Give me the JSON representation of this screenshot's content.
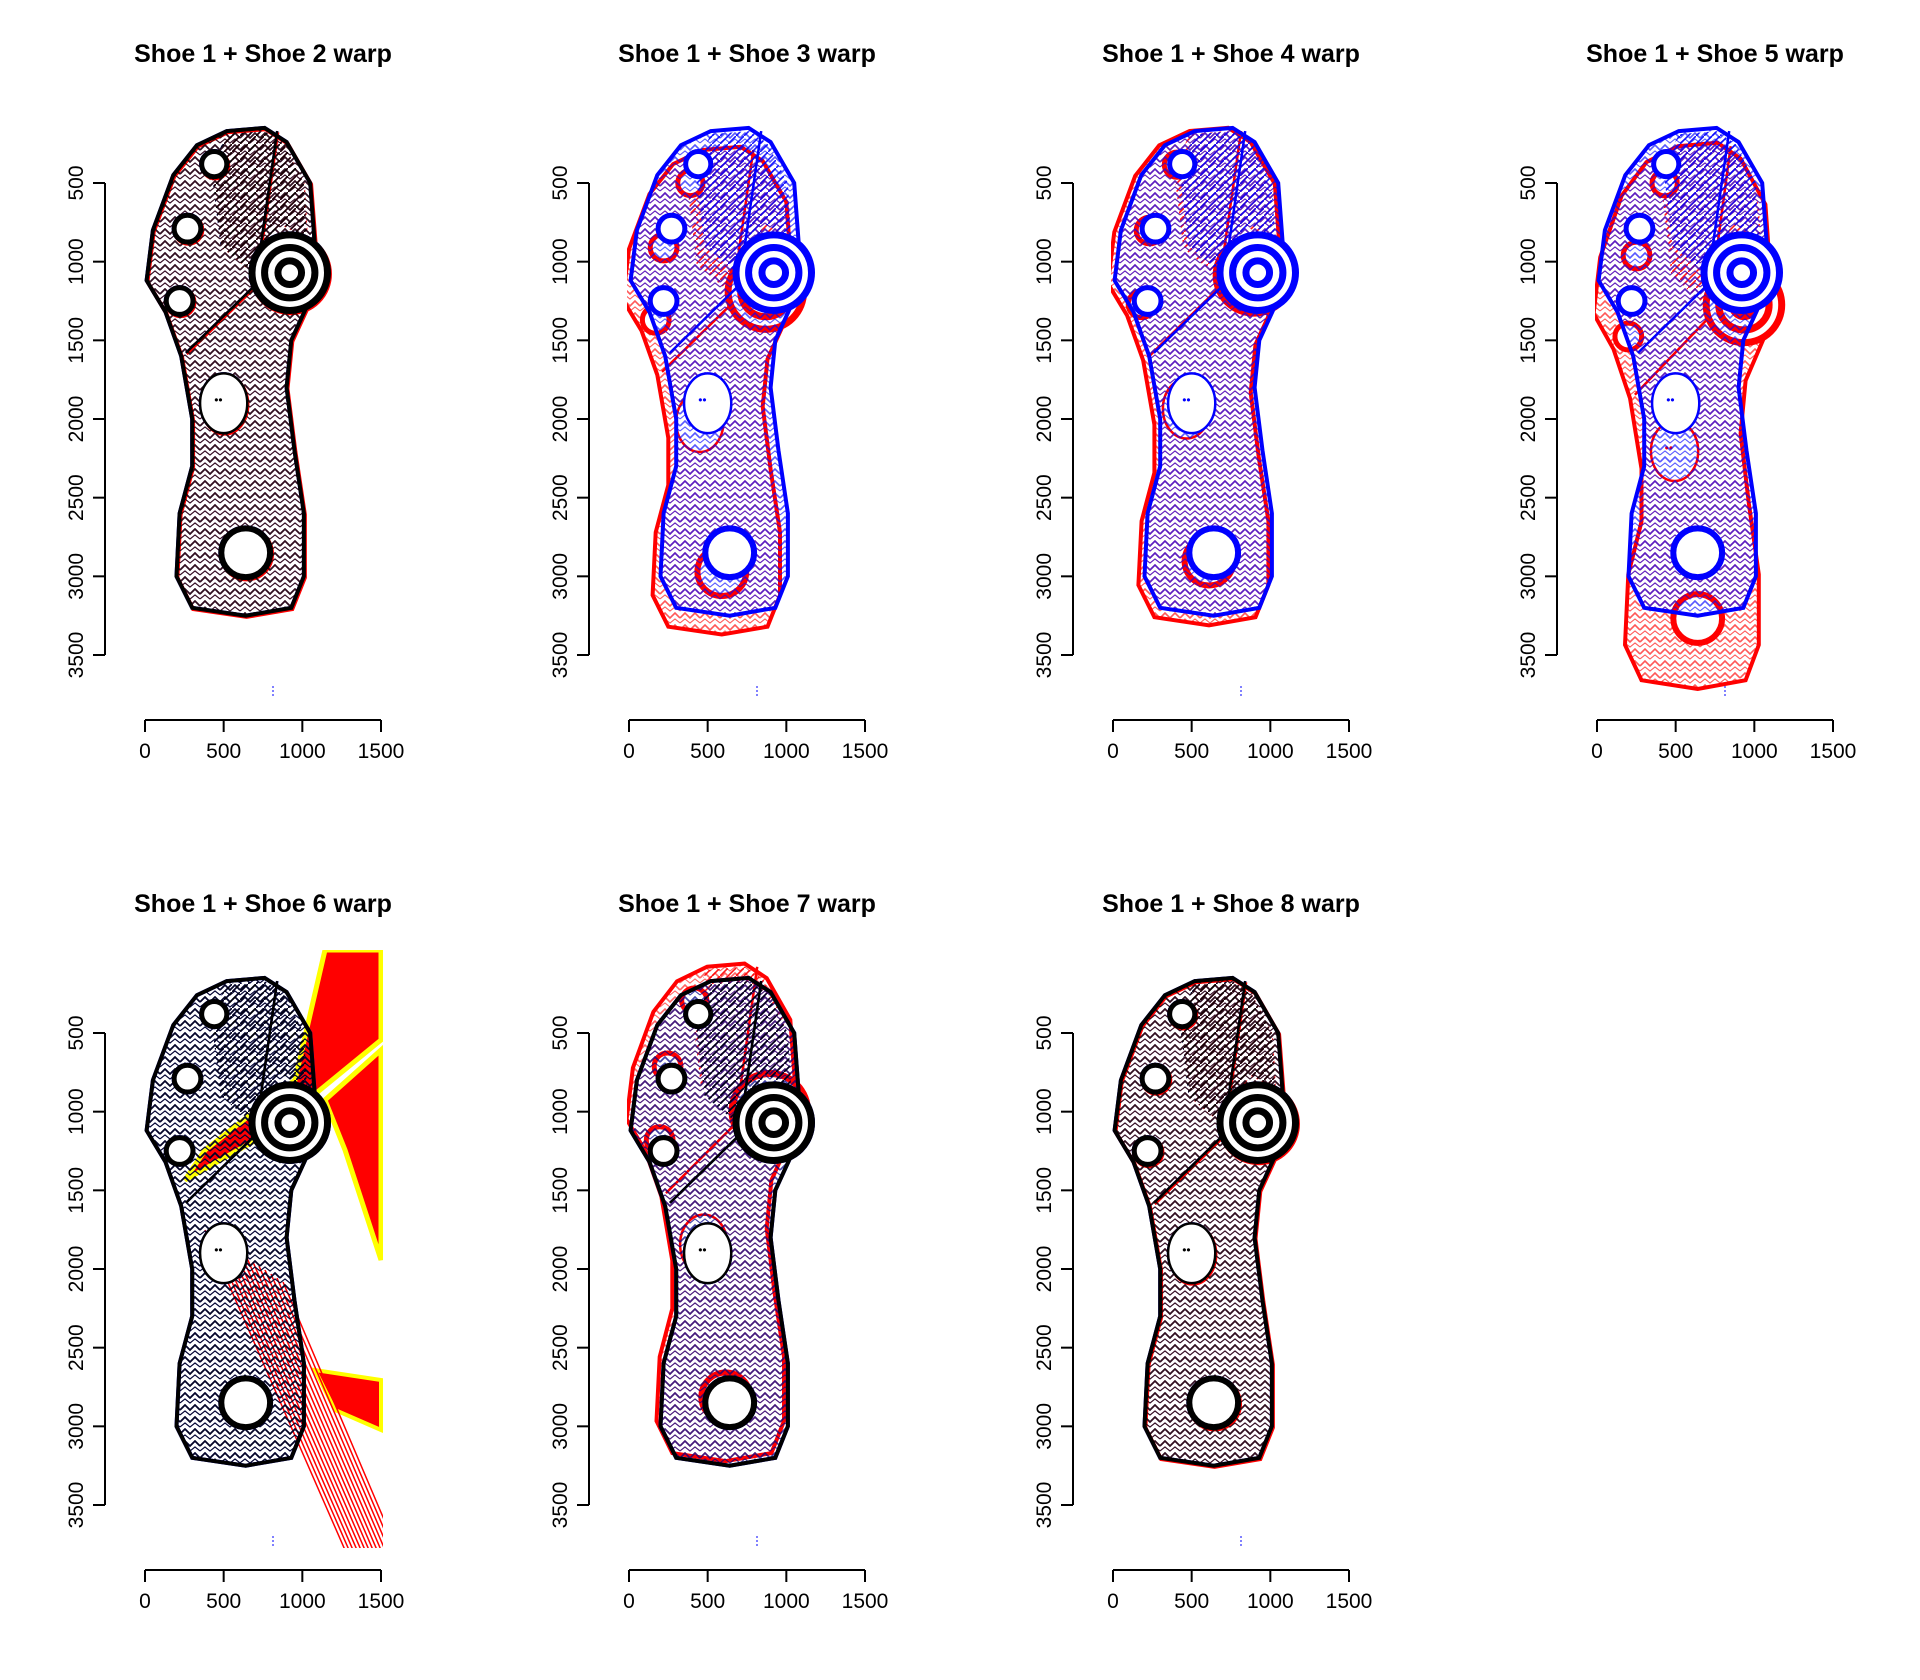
{
  "colors": {
    "reference": "#0000ff",
    "warp": "#ff0000",
    "overlap": "#000000",
    "edge": "#ffff00",
    "background": "#ffffff"
  },
  "chart_data": [
    {
      "type": "heatmap",
      "title": "Shoe 1 + Shoe 2 warp",
      "xlim": [
        0,
        1500
      ],
      "ylim": [
        3500,
        500
      ],
      "x_ticks": [
        0,
        500,
        1000,
        1500
      ],
      "y_ticks": [
        500,
        1000,
        1500,
        2000,
        2500,
        3000,
        3500
      ],
      "overlay": "good",
      "red_extra": "none"
    },
    {
      "type": "heatmap",
      "title": "Shoe 1 + Shoe 3 warp",
      "xlim": [
        0,
        1500
      ],
      "ylim": [
        3500,
        500
      ],
      "x_ticks": [
        0,
        500,
        1000,
        1500
      ],
      "y_ticks": [
        500,
        1000,
        1500,
        2000,
        2500,
        3000,
        3500
      ],
      "overlay": "misaligned",
      "red_extra": "circles"
    },
    {
      "type": "heatmap",
      "title": "Shoe 1 + Shoe 4 warp",
      "xlim": [
        0,
        1500
      ],
      "ylim": [
        3500,
        500
      ],
      "x_ticks": [
        0,
        500,
        1000,
        1500
      ],
      "y_ticks": [
        500,
        1000,
        1500,
        2000,
        2500,
        3000,
        3500
      ],
      "overlay": "misaligned",
      "red_extra": "heel"
    },
    {
      "type": "heatmap",
      "title": "Shoe 1 + Shoe 5 warp",
      "xlim": [
        0,
        1500
      ],
      "ylim": [
        3500,
        500
      ],
      "x_ticks": [
        0,
        500,
        1000,
        1500
      ],
      "y_ticks": [
        500,
        1000,
        1500,
        2000,
        2500,
        3000,
        3500
      ],
      "overlay": "misaligned",
      "red_extra": "stretched"
    },
    {
      "type": "heatmap",
      "title": "Shoe 1 + Shoe 6 warp",
      "xlim": [
        0,
        1500
      ],
      "ylim": [
        3500,
        500
      ],
      "x_ticks": [
        0,
        500,
        1000,
        1500
      ],
      "y_ticks": [
        500,
        1000,
        1500,
        2000,
        2500,
        3000,
        3500
      ],
      "overlay": "failed",
      "red_extra": "distorted"
    },
    {
      "type": "heatmap",
      "title": "Shoe 1 + Shoe 7 warp",
      "xlim": [
        0,
        1500
      ],
      "ylim": [
        3500,
        500
      ],
      "x_ticks": [
        0,
        500,
        1000,
        1500
      ],
      "y_ticks": [
        500,
        1000,
        1500,
        2000,
        2500,
        3000,
        3500
      ],
      "overlay": "partial",
      "red_extra": "left-edge"
    },
    {
      "type": "heatmap",
      "title": "Shoe 1 + Shoe 8 warp",
      "xlim": [
        0,
        1500
      ],
      "ylim": [
        3500,
        500
      ],
      "x_ticks": [
        0,
        500,
        1000,
        1500
      ],
      "y_ticks": [
        500,
        1000,
        1500,
        2000,
        2500,
        3000,
        3500
      ],
      "overlay": "good",
      "red_extra": "none"
    }
  ]
}
